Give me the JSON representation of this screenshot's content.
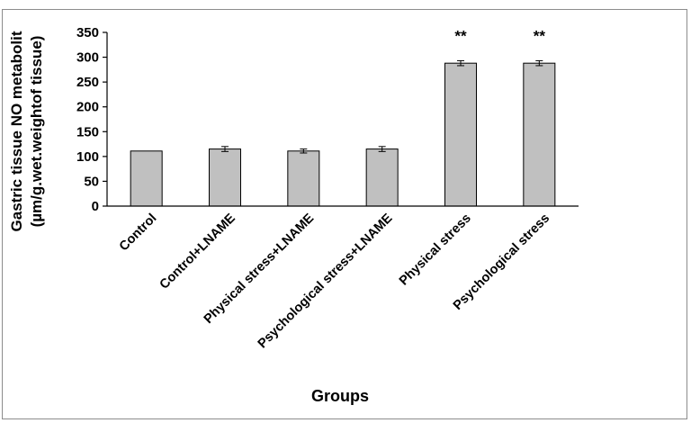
{
  "chart_data": {
    "type": "bar",
    "title": "",
    "ylabel_lines": [
      "Gastric tissue NO metabolit",
      "(µm/g.wet.weightof tissue)"
    ],
    "xlabel": "Groups",
    "ylim": [
      0,
      350
    ],
    "yticks": [
      0,
      50,
      100,
      150,
      200,
      250,
      300,
      350
    ],
    "categories": [
      "Control",
      "Control+LNAME",
      "Physical stress+LNAME",
      "Psychological stress+LNAME",
      "Physical stress",
      "Psychological stress"
    ],
    "values": [
      111,
      115,
      111,
      115,
      288,
      288
    ],
    "errors": [
      0,
      5,
      4,
      5,
      5,
      5
    ],
    "annotations": [
      "",
      "",
      "",
      "",
      "**",
      "**"
    ],
    "bar_color": "#c0c0c0",
    "grid": false,
    "legend": "none"
  }
}
